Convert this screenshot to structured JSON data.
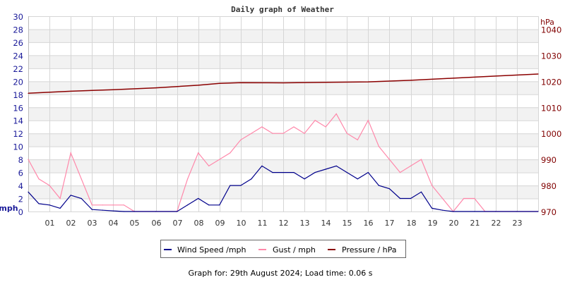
{
  "chart_data": {
    "type": "line",
    "title": "Daily graph of Weather",
    "left_axis": {
      "label": "mph",
      "ylim": [
        0,
        30
      ],
      "ticks": [
        0,
        2,
        4,
        6,
        8,
        10,
        12,
        14,
        16,
        18,
        20,
        22,
        24,
        26,
        28,
        30
      ],
      "color": "#1a1a99"
    },
    "right_axis": {
      "label": "hPa",
      "ylim": [
        970,
        1045
      ],
      "ticks": [
        970,
        980,
        990,
        1000,
        1010,
        1020,
        1030,
        1040
      ],
      "color": "#800000"
    },
    "x_axis": {
      "xlim": [
        0,
        24
      ],
      "tick_labels": [
        "01",
        "02",
        "03",
        "04",
        "05",
        "06",
        "07",
        "08",
        "09",
        "10",
        "11",
        "12",
        "13",
        "14",
        "15",
        "16",
        "17",
        "18",
        "19",
        "20",
        "21",
        "22",
        "23"
      ]
    },
    "grid": true,
    "series": [
      {
        "name": "Wind Speed /mph",
        "axis": "left",
        "color": "#00008b",
        "x": [
          0,
          0.5,
          1,
          1.5,
          2,
          2.5,
          3,
          3.5,
          4,
          4.5,
          5,
          6,
          7,
          7.5,
          8,
          8.5,
          9,
          9.5,
          10,
          10.5,
          11,
          11.5,
          12,
          12.5,
          13,
          13.5,
          14,
          14.5,
          15,
          15.5,
          16,
          16.5,
          17,
          17.5,
          18,
          18.5,
          19,
          19.5,
          20,
          21,
          22,
          23,
          24
        ],
        "values": [
          3,
          1.2,
          1,
          0.5,
          2.5,
          2,
          0.3,
          0.2,
          0.1,
          0,
          0,
          0,
          0,
          1,
          2,
          1,
          1,
          4,
          4,
          5,
          7,
          6,
          6,
          6,
          5,
          6,
          6.5,
          7,
          6,
          5,
          6,
          4,
          3.5,
          2,
          2,
          3,
          0.5,
          0.2,
          0,
          0,
          0,
          0,
          0
        ]
      },
      {
        "name": "Gust / mph",
        "axis": "left",
        "color": "#ff88aa",
        "x": [
          0,
          0.5,
          1,
          1.5,
          2,
          2.5,
          3,
          3.5,
          4,
          4.5,
          5,
          6,
          7,
          7.5,
          8,
          8.5,
          9,
          9.5,
          10,
          10.5,
          11,
          11.5,
          12,
          12.5,
          13,
          13.5,
          14,
          14.5,
          15,
          15.5,
          16,
          16.5,
          17,
          17.5,
          18,
          18.5,
          19,
          19.5,
          20,
          20.5,
          21,
          21.5,
          22,
          23,
          24
        ],
        "values": [
          8,
          5,
          4,
          2,
          9,
          5,
          1,
          1,
          1,
          1,
          0,
          0,
          0,
          5,
          9,
          7,
          8,
          9,
          11,
          12,
          13,
          12,
          12,
          13,
          12,
          14,
          13,
          15,
          12,
          11,
          14,
          10,
          8,
          6,
          7,
          8,
          4,
          2,
          0,
          2,
          2,
          0,
          0,
          0,
          0
        ]
      },
      {
        "name": "Pressure / hPa",
        "axis": "right",
        "color": "#8b0000",
        "x": [
          0,
          2,
          4,
          6,
          8,
          9,
          10,
          12,
          14,
          16,
          18,
          20,
          22,
          24
        ],
        "values": [
          1015.4,
          1016.2,
          1016.8,
          1017.5,
          1018.5,
          1019.2,
          1019.5,
          1019.4,
          1019.6,
          1019.8,
          1020.4,
          1021.2,
          1022,
          1022.8
        ]
      }
    ]
  },
  "footer": "Graph for: 29th August 2024; Load time: 0.06 s"
}
